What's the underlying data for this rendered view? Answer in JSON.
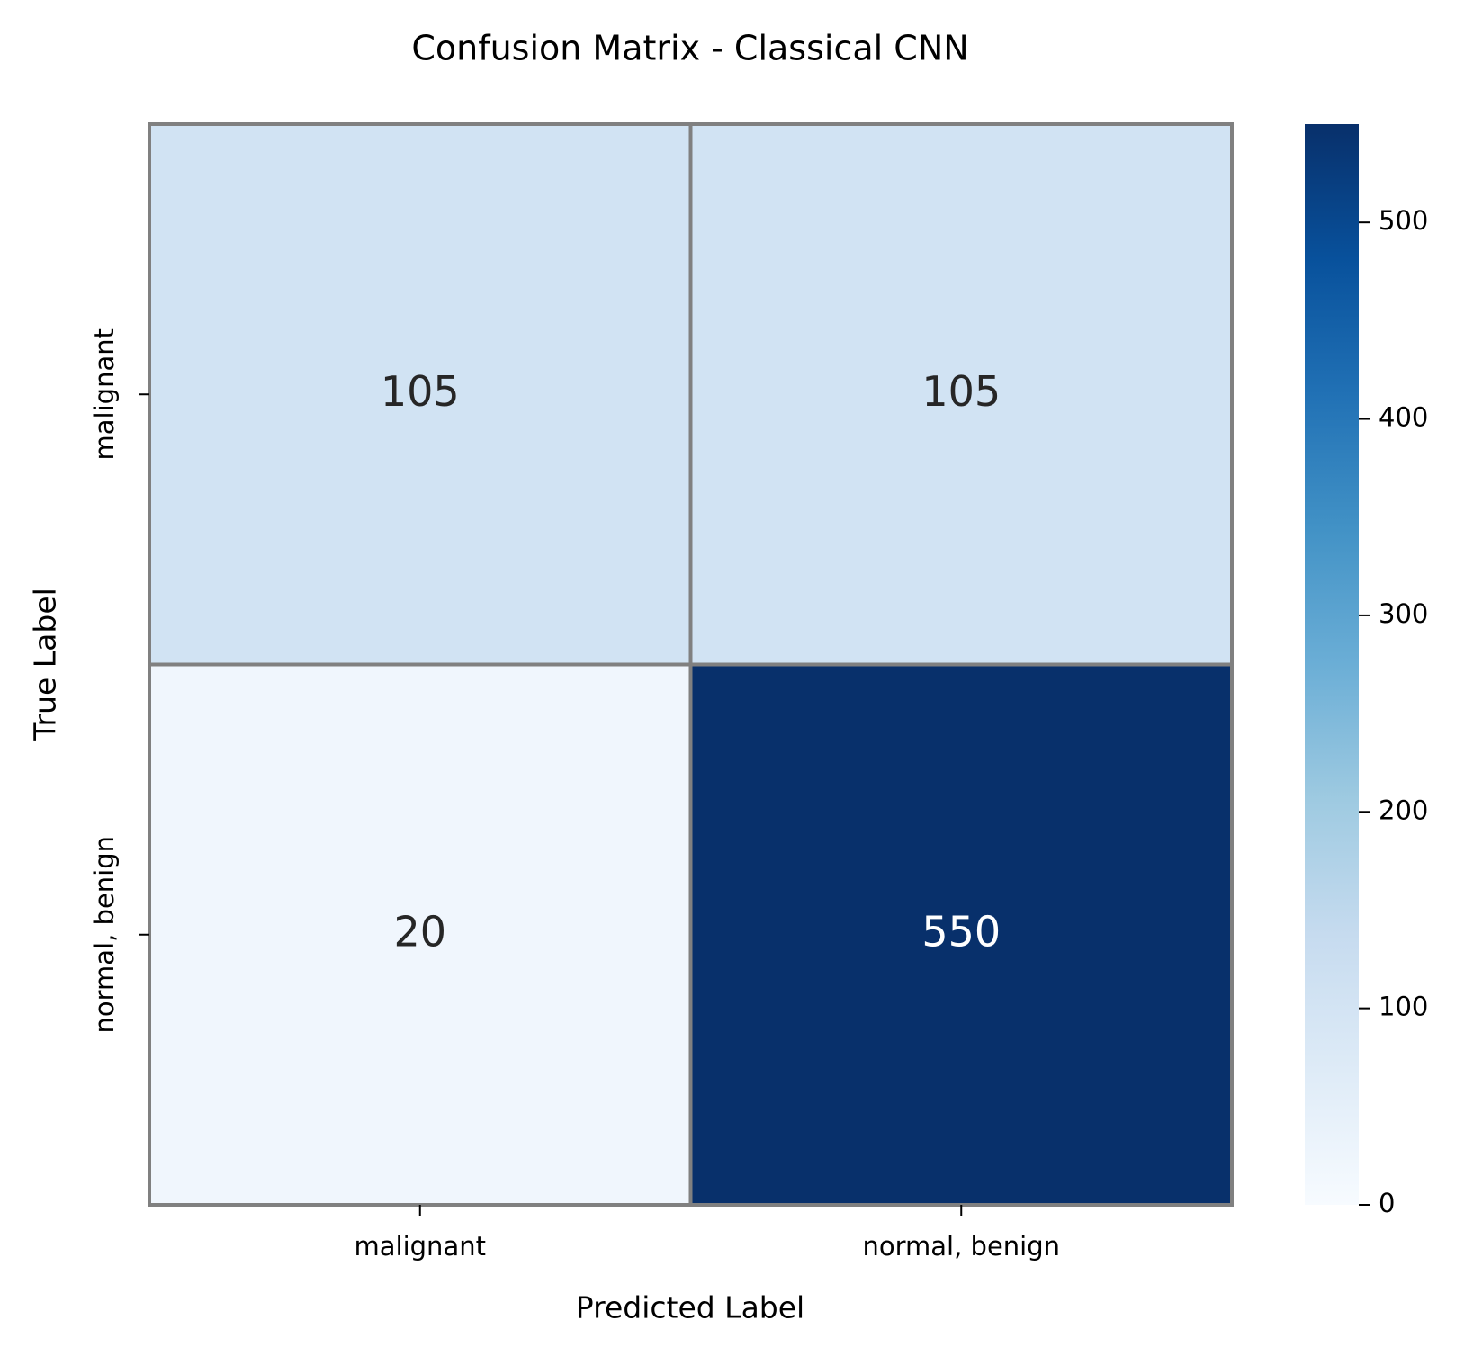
{
  "chart_data": {
    "type": "heatmap",
    "title": "Confusion Matrix - Classical CNN",
    "xlabel": "Predicted Label",
    "ylabel": "True Label",
    "x_categories": [
      "malignant",
      "normal, benign"
    ],
    "y_categories": [
      "malignant",
      "normal, benign"
    ],
    "values": [
      [
        105,
        105
      ],
      [
        20,
        550
      ]
    ],
    "colormap": "Blues",
    "clim": [
      0,
      550
    ],
    "cticks": [
      0,
      100,
      200,
      300,
      400,
      500
    ]
  }
}
